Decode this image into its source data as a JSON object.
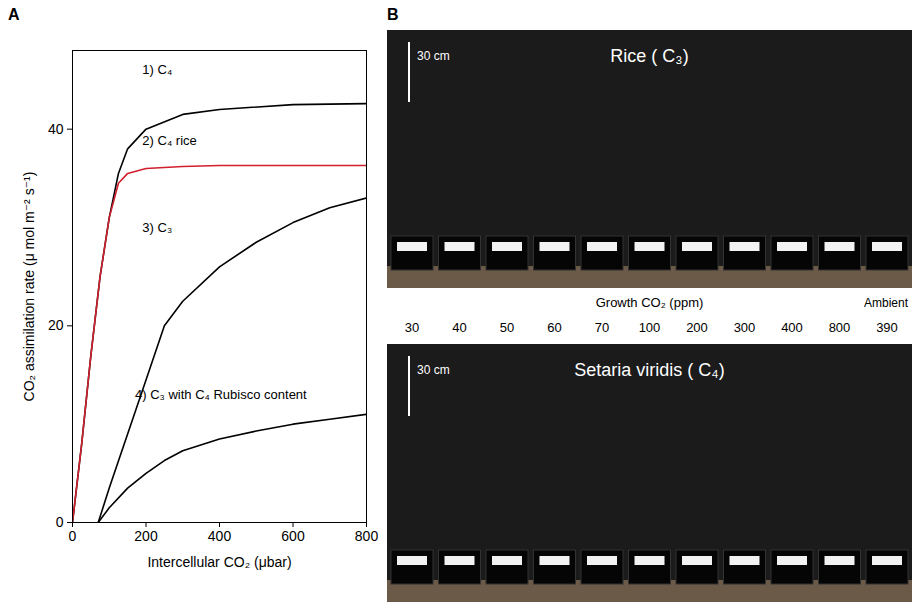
{
  "chart_data": {
    "type": "line",
    "panel": "A",
    "xlabel": "Intercellular CO₂ (μbar)",
    "ylabel": "CO₂ assimilation rate (μ mol m⁻² s⁻¹)",
    "xlim": [
      0,
      800
    ],
    "xticks": [
      0,
      200,
      400,
      600,
      800
    ],
    "ylim": [
      0,
      48
    ],
    "yticks": [
      0,
      20,
      40
    ],
    "grid": false,
    "series": [
      {
        "name": "1) C₄",
        "color": "#000000",
        "x": [
          0,
          25,
          50,
          75,
          100,
          125,
          150,
          200,
          300,
          400,
          600,
          800
        ],
        "values": [
          0,
          8,
          17,
          25,
          31,
          35.5,
          38,
          40,
          41.5,
          42,
          42.5,
          42.6
        ]
      },
      {
        "name": "2) C₄ rice",
        "color": "#d0202e",
        "x": [
          0,
          25,
          50,
          75,
          100,
          125,
          150,
          200,
          300,
          400,
          800
        ],
        "values": [
          0,
          8,
          17,
          25,
          31,
          34.5,
          35.5,
          36,
          36.2,
          36.3,
          36.3
        ]
      },
      {
        "name": "3) C₃",
        "color": "#000000",
        "x": [
          70,
          100,
          150,
          200,
          250,
          300,
          400,
          500,
          600,
          700,
          800
        ],
        "values": [
          0,
          3.5,
          9,
          14.5,
          20,
          22.5,
          26,
          28.5,
          30.5,
          32,
          33
        ]
      },
      {
        "name": "4) C₃ with C₄ Rubisco content",
        "color": "#000000",
        "x": [
          70,
          100,
          150,
          200,
          250,
          300,
          400,
          500,
          600,
          700,
          800
        ],
        "values": [
          0,
          1.5,
          3.5,
          5,
          6.3,
          7.3,
          8.5,
          9.3,
          10,
          10.5,
          11
        ]
      }
    ],
    "annotations": [
      {
        "text": "1) C₄",
        "x": 190,
        "y": 46
      },
      {
        "text": "2) C₄ rice",
        "x": 190,
        "y": 38.8
      },
      {
        "text": "3) C₃",
        "x": 190,
        "y": 30
      },
      {
        "text": "4) C₃ with C₄ Rubisco content",
        "x": 170,
        "y": 13
      }
    ]
  },
  "photo_panel": {
    "panel": "B",
    "scale_bar": "30 cm",
    "top_title": "Rice ( C₃)",
    "bottom_title": "Setaria viridis ( C₄)",
    "axis_label": "Growth CO₂ (ppm)",
    "growth_co2": [
      "30",
      "40",
      "50",
      "60",
      "70",
      "100",
      "200",
      "300",
      "400",
      "800",
      "390"
    ],
    "ambient_label": "Ambient"
  }
}
